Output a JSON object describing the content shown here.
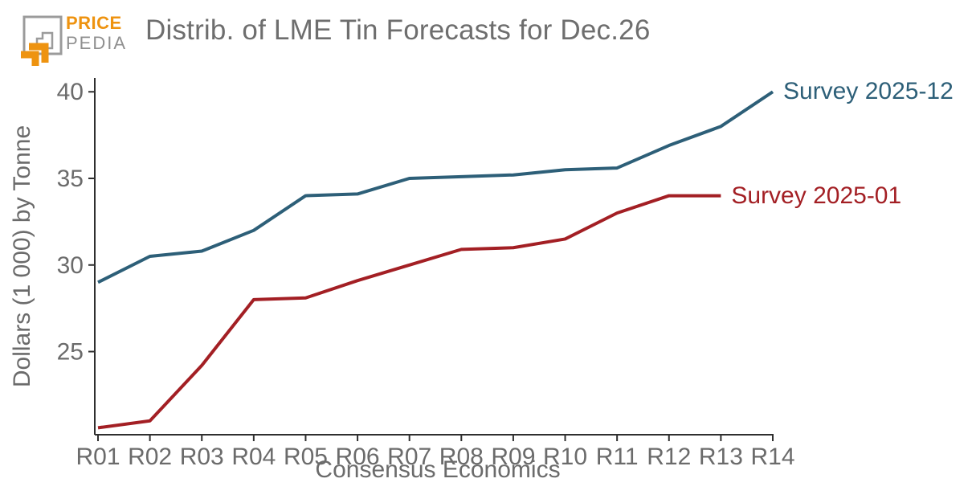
{
  "header": {
    "logo_line1": "PRICE",
    "logo_line2": "PEDIA",
    "title": "Distrib. of LME Tin Forecasts for Dec.26"
  },
  "chart_data": {
    "type": "line",
    "title": "Distrib. of LME Tin Forecasts for Dec.26",
    "xlabel": "Consensus Economics",
    "ylabel": "Dollars (1 000) by Tonne",
    "categories": [
      "R01",
      "R02",
      "R03",
      "R04",
      "R05",
      "R06",
      "R07",
      "R08",
      "R09",
      "R10",
      "R11",
      "R12",
      "R13",
      "R14"
    ],
    "yticks": [
      25,
      30,
      35,
      40
    ],
    "ylim": [
      20.2,
      40.8
    ],
    "grid": false,
    "legend_position": "labels at line ends",
    "series": [
      {
        "name": "Survey 2025-12",
        "color": "#2d5f78",
        "values": [
          29.0,
          30.5,
          30.8,
          32.0,
          34.0,
          34.1,
          35.0,
          35.1,
          35.2,
          35.5,
          35.6,
          36.9,
          38.0,
          40.0
        ]
      },
      {
        "name": "Survey 2025-01",
        "color": "#a31f24",
        "values": [
          20.6,
          21.0,
          24.2,
          28.0,
          28.1,
          29.1,
          30.0,
          30.9,
          31.0,
          31.5,
          33.0,
          34.0,
          34.0
        ]
      }
    ]
  },
  "colors": {
    "axis": "#2f2f2f",
    "tick_text": "#6b6b6b",
    "title_text": "#6e6e6e",
    "logo_orange": "#ee9310",
    "logo_gray": "#9b9b9b"
  }
}
